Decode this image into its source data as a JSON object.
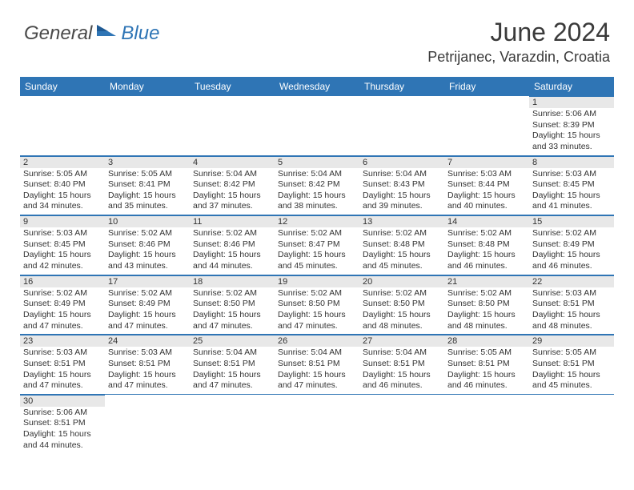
{
  "logo": {
    "text1": "General",
    "text2": "Blue"
  },
  "title": "June 2024",
  "location": "Petrijanec, Varazdin, Croatia",
  "colors": {
    "header_bg": "#2f75b5",
    "header_text": "#ffffff",
    "daynum_bg": "#e8e8e8",
    "border": "#2f75b5",
    "text": "#333333"
  },
  "dayHeaders": [
    "Sunday",
    "Monday",
    "Tuesday",
    "Wednesday",
    "Thursday",
    "Friday",
    "Saturday"
  ],
  "weeks": [
    [
      null,
      null,
      null,
      null,
      null,
      null,
      {
        "n": "1",
        "sr": "5:06 AM",
        "ss": "8:39 PM",
        "dl": "15 hours and 33 minutes."
      }
    ],
    [
      {
        "n": "2",
        "sr": "5:05 AM",
        "ss": "8:40 PM",
        "dl": "15 hours and 34 minutes."
      },
      {
        "n": "3",
        "sr": "5:05 AM",
        "ss": "8:41 PM",
        "dl": "15 hours and 35 minutes."
      },
      {
        "n": "4",
        "sr": "5:04 AM",
        "ss": "8:42 PM",
        "dl": "15 hours and 37 minutes."
      },
      {
        "n": "5",
        "sr": "5:04 AM",
        "ss": "8:42 PM",
        "dl": "15 hours and 38 minutes."
      },
      {
        "n": "6",
        "sr": "5:04 AM",
        "ss": "8:43 PM",
        "dl": "15 hours and 39 minutes."
      },
      {
        "n": "7",
        "sr": "5:03 AM",
        "ss": "8:44 PM",
        "dl": "15 hours and 40 minutes."
      },
      {
        "n": "8",
        "sr": "5:03 AM",
        "ss": "8:45 PM",
        "dl": "15 hours and 41 minutes."
      }
    ],
    [
      {
        "n": "9",
        "sr": "5:03 AM",
        "ss": "8:45 PM",
        "dl": "15 hours and 42 minutes."
      },
      {
        "n": "10",
        "sr": "5:02 AM",
        "ss": "8:46 PM",
        "dl": "15 hours and 43 minutes."
      },
      {
        "n": "11",
        "sr": "5:02 AM",
        "ss": "8:46 PM",
        "dl": "15 hours and 44 minutes."
      },
      {
        "n": "12",
        "sr": "5:02 AM",
        "ss": "8:47 PM",
        "dl": "15 hours and 45 minutes."
      },
      {
        "n": "13",
        "sr": "5:02 AM",
        "ss": "8:48 PM",
        "dl": "15 hours and 45 minutes."
      },
      {
        "n": "14",
        "sr": "5:02 AM",
        "ss": "8:48 PM",
        "dl": "15 hours and 46 minutes."
      },
      {
        "n": "15",
        "sr": "5:02 AM",
        "ss": "8:49 PM",
        "dl": "15 hours and 46 minutes."
      }
    ],
    [
      {
        "n": "16",
        "sr": "5:02 AM",
        "ss": "8:49 PM",
        "dl": "15 hours and 47 minutes."
      },
      {
        "n": "17",
        "sr": "5:02 AM",
        "ss": "8:49 PM",
        "dl": "15 hours and 47 minutes."
      },
      {
        "n": "18",
        "sr": "5:02 AM",
        "ss": "8:50 PM",
        "dl": "15 hours and 47 minutes."
      },
      {
        "n": "19",
        "sr": "5:02 AM",
        "ss": "8:50 PM",
        "dl": "15 hours and 47 minutes."
      },
      {
        "n": "20",
        "sr": "5:02 AM",
        "ss": "8:50 PM",
        "dl": "15 hours and 48 minutes."
      },
      {
        "n": "21",
        "sr": "5:02 AM",
        "ss": "8:50 PM",
        "dl": "15 hours and 48 minutes."
      },
      {
        "n": "22",
        "sr": "5:03 AM",
        "ss": "8:51 PM",
        "dl": "15 hours and 48 minutes."
      }
    ],
    [
      {
        "n": "23",
        "sr": "5:03 AM",
        "ss": "8:51 PM",
        "dl": "15 hours and 47 minutes."
      },
      {
        "n": "24",
        "sr": "5:03 AM",
        "ss": "8:51 PM",
        "dl": "15 hours and 47 minutes."
      },
      {
        "n": "25",
        "sr": "5:04 AM",
        "ss": "8:51 PM",
        "dl": "15 hours and 47 minutes."
      },
      {
        "n": "26",
        "sr": "5:04 AM",
        "ss": "8:51 PM",
        "dl": "15 hours and 47 minutes."
      },
      {
        "n": "27",
        "sr": "5:04 AM",
        "ss": "8:51 PM",
        "dl": "15 hours and 46 minutes."
      },
      {
        "n": "28",
        "sr": "5:05 AM",
        "ss": "8:51 PM",
        "dl": "15 hours and 46 minutes."
      },
      {
        "n": "29",
        "sr": "5:05 AM",
        "ss": "8:51 PM",
        "dl": "15 hours and 45 minutes."
      }
    ],
    [
      {
        "n": "30",
        "sr": "5:06 AM",
        "ss": "8:51 PM",
        "dl": "15 hours and 44 minutes."
      },
      null,
      null,
      null,
      null,
      null,
      null
    ]
  ],
  "labels": {
    "sunrise": "Sunrise:",
    "sunset": "Sunset:",
    "daylight": "Daylight:"
  }
}
